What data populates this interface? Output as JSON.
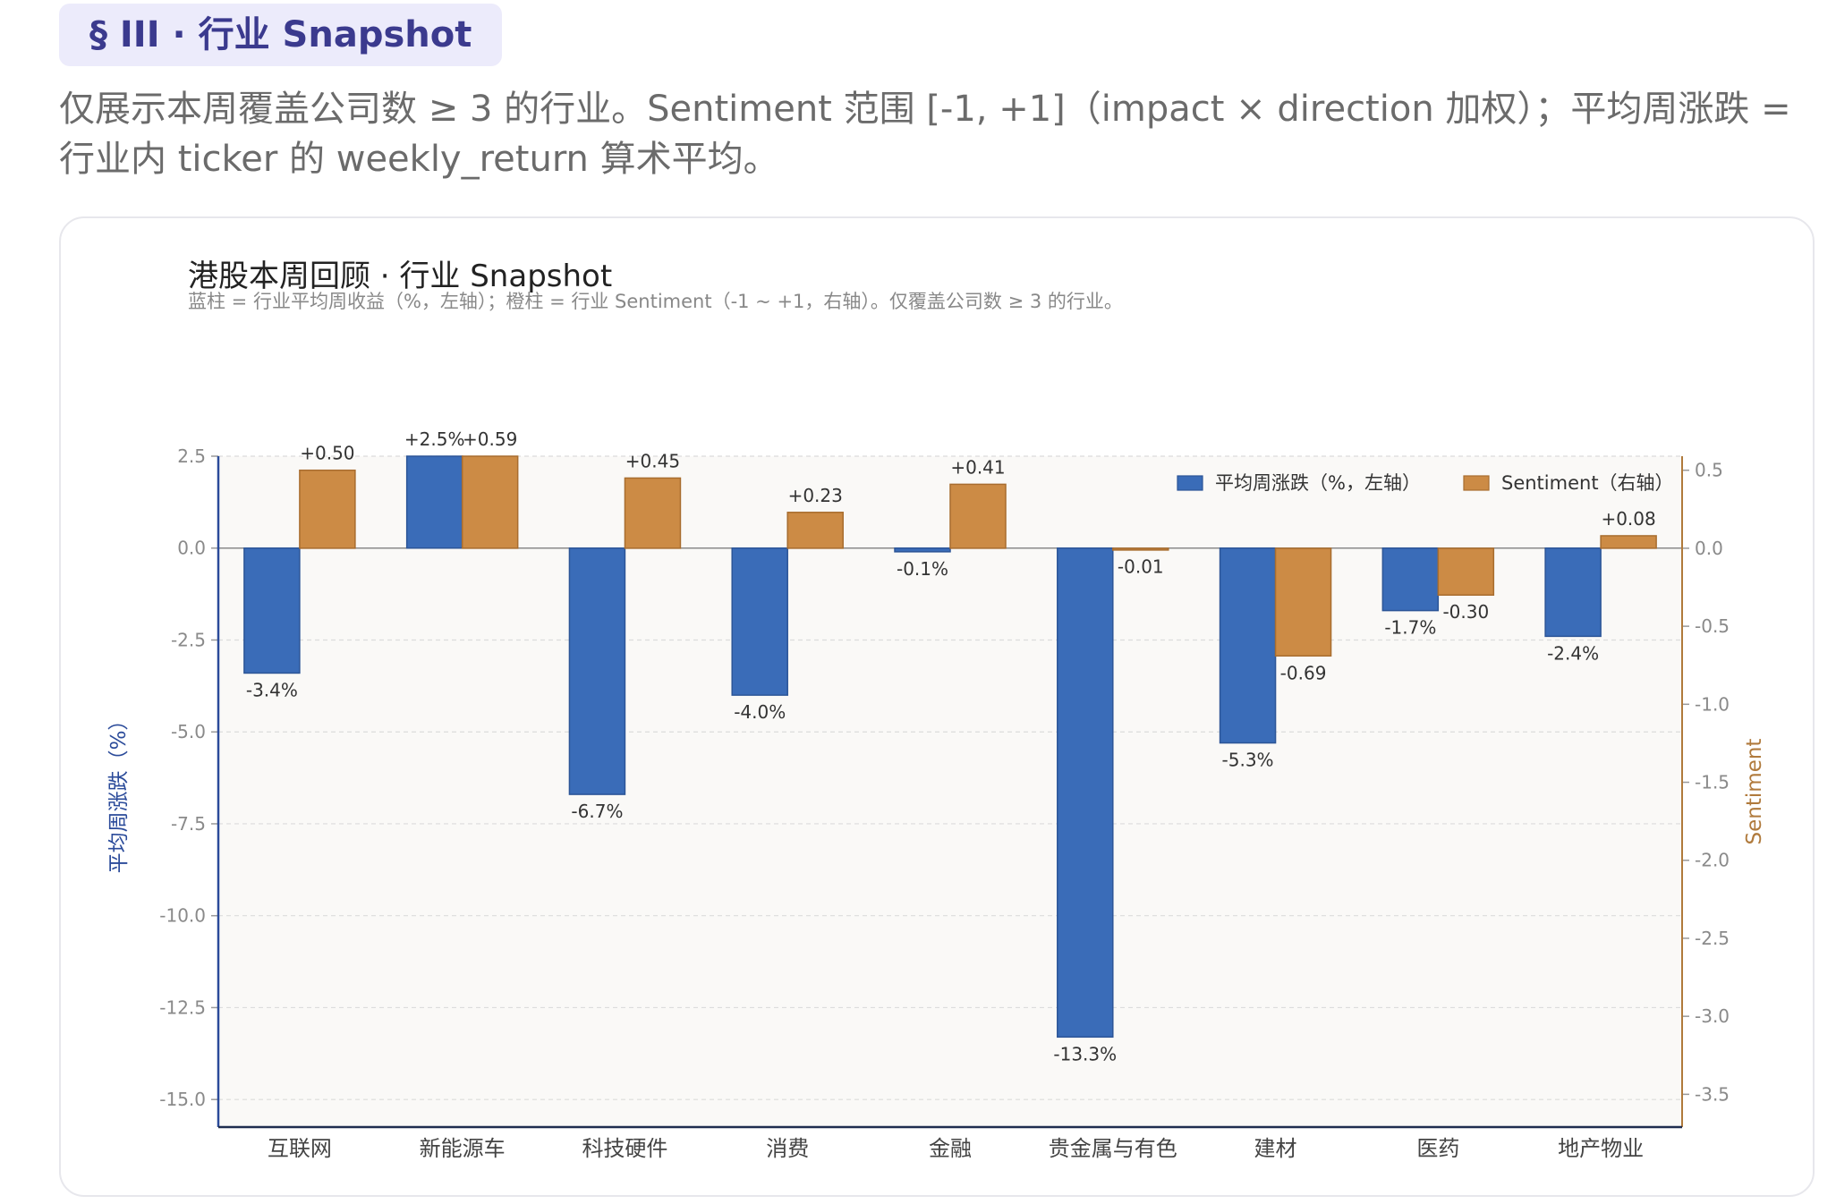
{
  "section": {
    "tag": "§ III · 行业 Snapshot"
  },
  "intro": {
    "text": "仅展示本周覆盖公司数 ≥ 3 的行业。Sentiment 范围 [-1, +1]（impact × direction 加权）；平均周涨跌 = 行业内 ticker 的 weekly_return 算术平均。"
  },
  "colors": {
    "bar_return": "#3a6cb8",
    "bar_sentiment": "#cc8b45",
    "left_axis": "#2b4b9a",
    "right_axis": "#b07a3c",
    "plot_bg": "#faf9f7"
  },
  "chart_data": {
    "type": "bar",
    "title": "港股本周回顾 · 行业 Snapshot",
    "subtitle": "蓝柱 = 行业平均周收益（%，左轴）；橙柱 = 行业 Sentiment（-1 ~ +1，右轴）。仅覆盖公司数 ≥ 3 的行业。",
    "ylabel": "平均周涨跌（%）",
    "y2label": "Sentiment",
    "categories": [
      "互联网",
      "新能源车",
      "科技硬件",
      "消费",
      "金融",
      "贵金属与有色",
      "建材",
      "医药",
      "地产物业"
    ],
    "series": [
      {
        "name": "平均周涨跌（%，左轴）",
        "axis": "left",
        "values": [
          -3.4,
          2.5,
          -6.7,
          -4.0,
          -0.1,
          -13.3,
          -5.3,
          -1.7,
          -2.4
        ],
        "labels": [
          "-3.4%",
          "+2.5%",
          "-6.7%",
          "-4.0%",
          "-0.1%",
          "-13.3%",
          "-5.3%",
          "-1.7%",
          "-2.4%"
        ]
      },
      {
        "name": "Sentiment（右轴）",
        "axis": "right",
        "values": [
          0.5,
          0.59,
          0.45,
          0.23,
          0.41,
          -0.01,
          -0.69,
          -0.3,
          0.08
        ],
        "labels": [
          "+0.50",
          "+0.59",
          "+0.45",
          "+0.23",
          "+0.41",
          "-0.01",
          "-0.69",
          "-0.30",
          "+0.08"
        ]
      }
    ],
    "ylim": [
      -15.75,
      2.5
    ],
    "y2lim": [
      -3.71,
      0.59
    ],
    "yticks": [
      "2.5",
      "0.0",
      "-2.5",
      "-5.0",
      "-7.5",
      "-10.0",
      "-12.5",
      "-15.0"
    ],
    "yticks_values": [
      2.5,
      0.0,
      -2.5,
      -5.0,
      -7.5,
      -10.0,
      -12.5,
      -15.0
    ],
    "y2ticks": [
      "0.5",
      "0.0",
      "-0.5",
      "-1.0",
      "-1.5",
      "-2.0",
      "-2.5",
      "-3.0",
      "-3.5"
    ],
    "y2ticks_values": [
      0.5,
      0.0,
      -0.5,
      -1.0,
      -1.5,
      -2.0,
      -2.5,
      -3.0,
      -3.5
    ],
    "grid": true,
    "legend_position": "top-right"
  }
}
